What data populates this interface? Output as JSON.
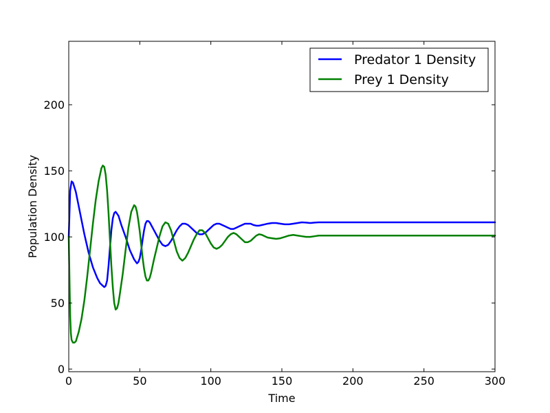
{
  "chart_data": {
    "type": "line",
    "xlabel": "Time",
    "ylabel": "Population Density",
    "xlim": [
      0,
      300
    ],
    "ylim": [
      -2,
      248
    ],
    "xticks": [
      0,
      50,
      100,
      150,
      200,
      250,
      300
    ],
    "yticks": [
      0,
      50,
      100,
      150,
      200
    ],
    "grid": false,
    "legend_position": "top-right",
    "series": [
      {
        "name": "Predator 1 Density",
        "color": "#0000ff",
        "x": [
          0,
          1,
          2,
          3,
          5,
          8,
          11,
          14,
          17,
          20,
          22,
          24,
          25,
          26,
          27,
          28,
          29,
          30,
          31,
          32,
          33,
          35,
          37,
          40,
          43,
          46,
          48,
          49,
          50,
          51,
          52,
          53,
          54,
          55,
          56,
          57,
          58,
          60,
          62,
          64,
          66,
          68,
          70,
          72,
          74,
          76,
          78,
          80,
          82,
          84,
          86,
          88,
          90,
          92,
          94,
          96,
          98,
          100,
          102,
          104,
          106,
          108,
          110,
          112,
          114,
          116,
          118,
          120,
          122,
          124,
          126,
          128,
          130,
          132,
          134,
          136,
          138,
          140,
          143,
          146,
          149,
          152,
          155,
          158,
          161,
          164,
          167,
          170,
          173,
          176,
          180,
          185,
          190,
          195,
          200,
          205,
          210,
          215,
          220,
          225,
          230,
          240,
          250,
          260,
          270,
          280,
          290,
          300
        ],
        "y": [
          100,
          135,
          142,
          141,
          134,
          118,
          102,
          88,
          77,
          69,
          65,
          63,
          62,
          63,
          67,
          78,
          92,
          105,
          114,
          118,
          119,
          116,
          109,
          100,
          90,
          83,
          80,
          81,
          84,
          90,
          98,
          105,
          110,
          112,
          112,
          111,
          109,
          105,
          101,
          97,
          94,
          93,
          94,
          97,
          101,
          105,
          108,
          110,
          110,
          109,
          107,
          105,
          103,
          102,
          102,
          103,
          105,
          107,
          109,
          110,
          110,
          109,
          108,
          107,
          106,
          106,
          107,
          108,
          109,
          110,
          110,
          110,
          109,
          108.5,
          108.5,
          109,
          109.5,
          110,
          110.5,
          110.5,
          110,
          109.5,
          109.5,
          110,
          110.5,
          111,
          110.8,
          110.5,
          110.8,
          111,
          111,
          111,
          111,
          111,
          111,
          111,
          111,
          111,
          111,
          111,
          111,
          111,
          111,
          111,
          111,
          111,
          111,
          111
        ]
      },
      {
        "name": "Prey 1 Density",
        "color": "#008000",
        "x": [
          0,
          0.5,
          1,
          1.5,
          2,
          3,
          4,
          5,
          7,
          9,
          11,
          13,
          15,
          17,
          19,
          21,
          23,
          24,
          25,
          26,
          27,
          28,
          29,
          30,
          31,
          32,
          33,
          34,
          35,
          36,
          38,
          40,
          42,
          44,
          46,
          47,
          48,
          49,
          50,
          51,
          52,
          53,
          54,
          55,
          56,
          57,
          58,
          59,
          60,
          62,
          64,
          66,
          68,
          70,
          72,
          74,
          76,
          78,
          80,
          82,
          84,
          86,
          88,
          90,
          92,
          94,
          96,
          98,
          100,
          102,
          104,
          106,
          108,
          110,
          112,
          114,
          116,
          118,
          120,
          122,
          124,
          126,
          128,
          130,
          132,
          134,
          136,
          138,
          140,
          143,
          146,
          149,
          152,
          155,
          158,
          161,
          164,
          167,
          170,
          173,
          176,
          180,
          185,
          190,
          195,
          200,
          205,
          210,
          215,
          220,
          225,
          230,
          240,
          250,
          260,
          270,
          280,
          290,
          300
        ],
        "y": [
          100,
          70,
          40,
          27,
          22,
          20,
          20,
          21,
          28,
          38,
          52,
          70,
          90,
          110,
          128,
          142,
          152,
          154,
          153,
          147,
          135,
          118,
          98,
          78,
          62,
          50,
          45,
          46,
          50,
          57,
          72,
          90,
          107,
          119,
          124,
          123,
          119,
          112,
          104,
          94,
          84,
          76,
          70,
          67,
          67,
          69,
          73,
          78,
          83,
          92,
          101,
          108,
          111,
          110,
          105,
          97,
          89,
          84,
          82,
          84,
          88,
          93,
          98,
          102,
          105,
          105,
          103,
          99,
          95,
          92,
          91,
          92,
          94,
          97,
          100,
          102,
          103,
          102,
          100,
          98,
          96,
          96,
          97,
          99,
          101,
          102,
          101.5,
          100.5,
          99.5,
          99,
          98.5,
          99,
          100,
          101,
          101.5,
          101,
          100.5,
          100,
          100,
          100.5,
          101,
          101,
          101,
          101,
          101,
          101,
          101,
          101,
          101,
          101,
          101,
          101,
          101,
          101,
          101,
          101,
          101,
          101,
          101
        ]
      }
    ]
  }
}
